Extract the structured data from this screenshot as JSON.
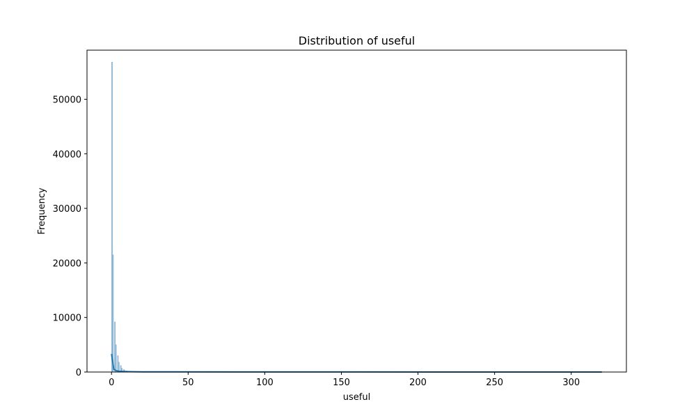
{
  "chart_data": {
    "type": "bar",
    "title": "Distribution of useful",
    "xlabel": "useful",
    "ylabel": "Frequency",
    "xlim": [
      -16,
      336
    ],
    "ylim": [
      0,
      59000
    ],
    "x_ticks": [
      0,
      50,
      100,
      150,
      200,
      250,
      300
    ],
    "y_ticks": [
      0,
      10000,
      20000,
      30000,
      40000,
      50000
    ],
    "grid": false,
    "legend": "none",
    "colors": {
      "bar": "#a6c5dc",
      "bar_edge": "#4f8fbf",
      "kde": "#1f77b4"
    },
    "histogram": {
      "bins": [
        {
          "x0": 0.0,
          "x1": 0.64,
          "count": 56800
        },
        {
          "x0": 0.64,
          "x1": 1.28,
          "count": 21500
        },
        {
          "x0": 1.92,
          "x1": 2.56,
          "count": 9200
        },
        {
          "x0": 2.56,
          "x1": 3.2,
          "count": 5000
        },
        {
          "x0": 3.84,
          "x1": 4.48,
          "count": 3000
        },
        {
          "x0": 4.48,
          "x1": 5.12,
          "count": 1800
        },
        {
          "x0": 5.76,
          "x1": 6.4,
          "count": 1200
        },
        {
          "x0": 6.4,
          "x1": 7.04,
          "count": 700
        },
        {
          "x0": 7.68,
          "x1": 8.32,
          "count": 450
        },
        {
          "x0": 8.32,
          "x1": 8.96,
          "count": 300
        },
        {
          "x0": 9.6,
          "x1": 10.24,
          "count": 200
        }
      ]
    },
    "kde": {
      "x": [
        0,
        1.5,
        3,
        5,
        8,
        12,
        20,
        40,
        80,
        150,
        250,
        320
      ],
      "y": [
        3300,
        500,
        250,
        150,
        90,
        60,
        40,
        25,
        15,
        10,
        5,
        2
      ]
    }
  }
}
